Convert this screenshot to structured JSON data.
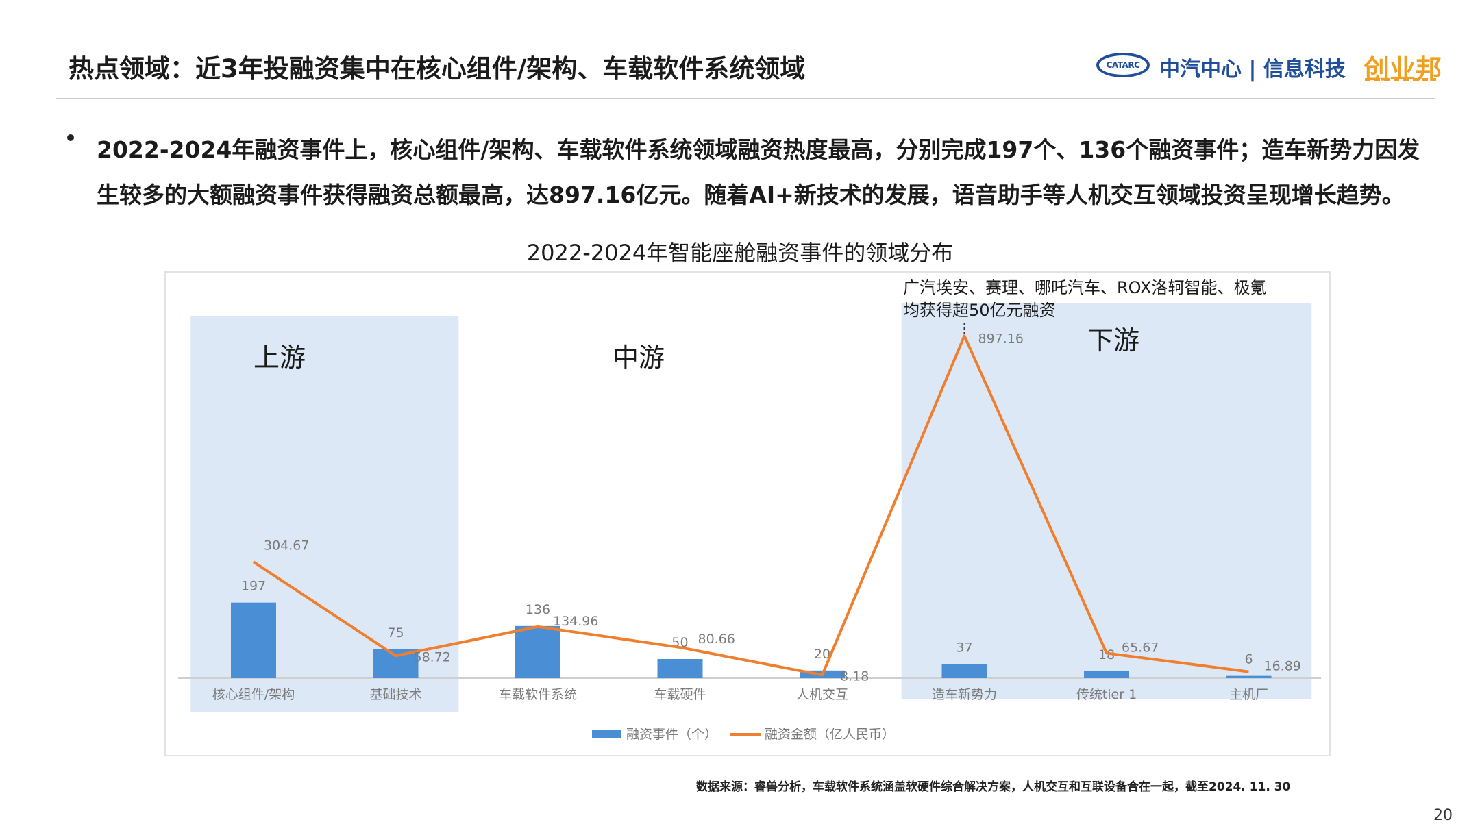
{
  "header": {
    "title": "热点领域：近3年投融资集中在核心组件/架构、车载软件系统领域",
    "logo_oval_text": "CATARC",
    "logo_org": "中汽中心 | 信息科技",
    "logo_cyb": "创业邦"
  },
  "bullet": "2022-2024年融资事件上，核心组件/架构、车载软件系统领域融资热度最高，分别完成197个、136个融资事件；造车新势力因发生较多的大额融资事件获得融资总额最高，达897.16亿元。随着AI+新技术的发展，语音助手等人机交互领域投资呈现增长趋势。",
  "chart_title": "2022-2024年智能座舱融资事件的领域分布",
  "chart_data": {
    "type": "bar",
    "categories": [
      "核心组件/架构",
      "基础技术",
      "车载软件系统",
      "车载硬件",
      "人机交互",
      "造车新势力",
      "传统tier 1",
      "主机厂"
    ],
    "series": [
      {
        "name": "融资事件（个）",
        "type": "bar",
        "color": "#4a8fd6",
        "values": [
          197,
          75,
          136,
          50,
          20,
          37,
          18,
          6
        ]
      },
      {
        "name": "融资金额（亿人民币）",
        "type": "line",
        "color": "#ef7f2e",
        "values": [
          304.67,
          58.72,
          134.96,
          80.66,
          8.18,
          897.16,
          65.67,
          16.89
        ]
      }
    ],
    "value_labels_bar": [
      "197",
      "75",
      "136",
      "50",
      "20",
      "37",
      "18",
      "6"
    ],
    "value_labels_line": [
      "304.67",
      "58.72",
      "134.96",
      "80.66",
      "8.18",
      "897.16",
      "65.67",
      "16.89"
    ],
    "regions": [
      {
        "label": "上游",
        "from": 0,
        "to": 1,
        "shaded": true
      },
      {
        "label": "中游",
        "from": 2,
        "to": 4,
        "shaded": false
      },
      {
        "label": "下游",
        "from": 5,
        "to": 7,
        "shaded": true
      }
    ],
    "annotation": [
      "广汽埃安、赛理、哪吒汽车、ROX洛轲智能、极氪",
      "均获得超50亿元融资"
    ],
    "legend_position": "bottom",
    "grid": false
  },
  "source_note": "数据来源：睿兽分析，车载软件系统涵盖软硬件综合解决方案，人机交互和互联设备合在一起，截至2024. 11. 30",
  "page_number": "20"
}
